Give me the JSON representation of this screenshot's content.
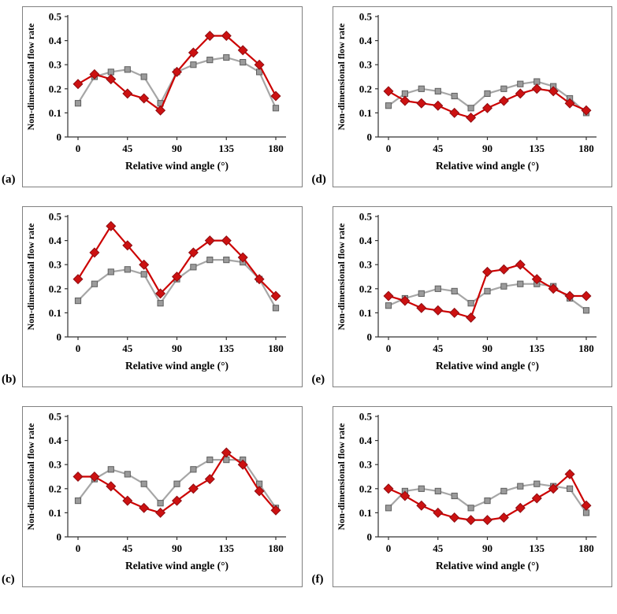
{
  "figure": {
    "xlabel": "Relative wind angle (°)",
    "ylabel": "Non-dimensional flow rate"
  },
  "colors": {
    "red_line": "#cc0000",
    "red_fill": "#cc1111",
    "red_stroke": "#8f0d12",
    "gray_line": "#a6a6a6",
    "gray_fill": "#9b9b9b",
    "gray_stroke": "#5f5f5f",
    "axis": "#333333"
  },
  "chart_data": [
    {
      "type": "line",
      "label": "(a)",
      "xlabel": "Relative wind angle (°)",
      "ylabel": "Non-dimensional flow rate",
      "xlim": [
        0,
        180
      ],
      "ylim": [
        0,
        0.5
      ],
      "xticks": [
        0,
        45,
        90,
        135,
        180
      ],
      "yticks": [
        0,
        0.1,
        0.2,
        0.3,
        0.4,
        0.5
      ],
      "x": [
        0,
        15,
        30,
        45,
        60,
        75,
        90,
        105,
        120,
        135,
        150,
        165,
        180
      ],
      "series": [
        {
          "name": "gray-squares",
          "marker": "square",
          "values": [
            0.14,
            0.25,
            0.27,
            0.28,
            0.25,
            0.14,
            0.27,
            0.3,
            0.32,
            0.33,
            0.31,
            0.27,
            0.12
          ]
        },
        {
          "name": "red-diamonds",
          "marker": "diamond",
          "values": [
            0.22,
            0.26,
            0.24,
            0.18,
            0.16,
            0.11,
            0.27,
            0.35,
            0.42,
            0.42,
            0.36,
            0.3,
            0.17
          ]
        }
      ]
    },
    {
      "type": "line",
      "label": "(b)",
      "xlabel": "Relative wind angle (°)",
      "ylabel": "Non-dimensional flow rate",
      "xlim": [
        0,
        180
      ],
      "ylim": [
        0,
        0.5
      ],
      "xticks": [
        0,
        45,
        90,
        135,
        180
      ],
      "yticks": [
        0,
        0.1,
        0.2,
        0.3,
        0.4,
        0.5
      ],
      "x": [
        0,
        15,
        30,
        45,
        60,
        75,
        90,
        105,
        120,
        135,
        150,
        165,
        180
      ],
      "series": [
        {
          "name": "gray-squares",
          "marker": "square",
          "values": [
            0.15,
            0.22,
            0.27,
            0.28,
            0.26,
            0.14,
            0.24,
            0.29,
            0.32,
            0.32,
            0.31,
            0.24,
            0.12
          ]
        },
        {
          "name": "red-diamonds",
          "marker": "diamond",
          "values": [
            0.24,
            0.35,
            0.46,
            0.38,
            0.3,
            0.18,
            0.25,
            0.35,
            0.4,
            0.4,
            0.33,
            0.24,
            0.17
          ]
        }
      ]
    },
    {
      "type": "line",
      "label": "(c)",
      "xlabel": "Relative wind angle (°)",
      "ylabel": "Non-dimensional flow rate",
      "xlim": [
        0,
        180
      ],
      "ylim": [
        0,
        0.5
      ],
      "xticks": [
        0,
        45,
        90,
        135,
        180
      ],
      "yticks": [
        0,
        0.1,
        0.2,
        0.3,
        0.4,
        0.5
      ],
      "x": [
        0,
        15,
        30,
        45,
        60,
        75,
        90,
        105,
        120,
        135,
        150,
        165,
        180
      ],
      "series": [
        {
          "name": "gray-squares",
          "marker": "square",
          "values": [
            0.15,
            0.24,
            0.28,
            0.26,
            0.22,
            0.14,
            0.22,
            0.28,
            0.32,
            0.32,
            0.32,
            0.22,
            0.12
          ]
        },
        {
          "name": "red-diamonds",
          "marker": "diamond",
          "values": [
            0.25,
            0.25,
            0.21,
            0.15,
            0.12,
            0.1,
            0.15,
            0.2,
            0.24,
            0.35,
            0.3,
            0.19,
            0.11
          ]
        }
      ]
    },
    {
      "type": "line",
      "label": "(d)",
      "xlabel": "Relative wind angle (°)",
      "ylabel": "Non-dimensional flow rate",
      "xlim": [
        0,
        180
      ],
      "ylim": [
        0,
        0.5
      ],
      "xticks": [
        0,
        45,
        90,
        135,
        180
      ],
      "yticks": [
        0,
        0.1,
        0.2,
        0.3,
        0.4,
        0.5
      ],
      "x": [
        0,
        15,
        30,
        45,
        60,
        75,
        90,
        105,
        120,
        135,
        150,
        165,
        180
      ],
      "series": [
        {
          "name": "gray-squares",
          "marker": "square",
          "values": [
            0.13,
            0.18,
            0.2,
            0.19,
            0.17,
            0.12,
            0.18,
            0.2,
            0.22,
            0.23,
            0.21,
            0.16,
            0.1
          ]
        },
        {
          "name": "red-diamonds",
          "marker": "diamond",
          "values": [
            0.19,
            0.15,
            0.14,
            0.13,
            0.1,
            0.08,
            0.12,
            0.15,
            0.18,
            0.2,
            0.19,
            0.14,
            0.11
          ]
        }
      ]
    },
    {
      "type": "line",
      "label": "(e)",
      "xlabel": "Relative wind angle (°)",
      "ylabel": "Non-dimensional flow rate",
      "xlim": [
        0,
        180
      ],
      "ylim": [
        0,
        0.5
      ],
      "xticks": [
        0,
        45,
        90,
        135,
        180
      ],
      "yticks": [
        0,
        0.1,
        0.2,
        0.3,
        0.4,
        0.5
      ],
      "x": [
        0,
        15,
        30,
        45,
        60,
        75,
        90,
        105,
        120,
        135,
        150,
        165,
        180
      ],
      "series": [
        {
          "name": "gray-squares",
          "marker": "square",
          "values": [
            0.13,
            0.16,
            0.18,
            0.2,
            0.19,
            0.14,
            0.19,
            0.21,
            0.22,
            0.22,
            0.21,
            0.16,
            0.11
          ]
        },
        {
          "name": "red-diamonds",
          "marker": "diamond",
          "values": [
            0.17,
            0.15,
            0.12,
            0.11,
            0.1,
            0.08,
            0.27,
            0.28,
            0.3,
            0.24,
            0.2,
            0.17,
            0.17
          ]
        }
      ]
    },
    {
      "type": "line",
      "label": "(f)",
      "xlabel": "Relative wind angle (°)",
      "ylabel": "Non-dimensional flow rate",
      "xlim": [
        0,
        180
      ],
      "ylim": [
        0,
        0.5
      ],
      "xticks": [
        0,
        45,
        90,
        135,
        180
      ],
      "yticks": [
        0,
        0.1,
        0.2,
        0.3,
        0.4,
        0.5
      ],
      "x": [
        0,
        15,
        30,
        45,
        60,
        75,
        90,
        105,
        120,
        135,
        150,
        165,
        180
      ],
      "series": [
        {
          "name": "gray-squares",
          "marker": "square",
          "values": [
            0.12,
            0.19,
            0.2,
            0.19,
            0.17,
            0.12,
            0.15,
            0.19,
            0.21,
            0.22,
            0.21,
            0.2,
            0.1
          ]
        },
        {
          "name": "red-diamonds",
          "marker": "diamond",
          "values": [
            0.2,
            0.17,
            0.13,
            0.1,
            0.08,
            0.07,
            0.07,
            0.08,
            0.12,
            0.16,
            0.2,
            0.26,
            0.13
          ]
        }
      ]
    }
  ]
}
